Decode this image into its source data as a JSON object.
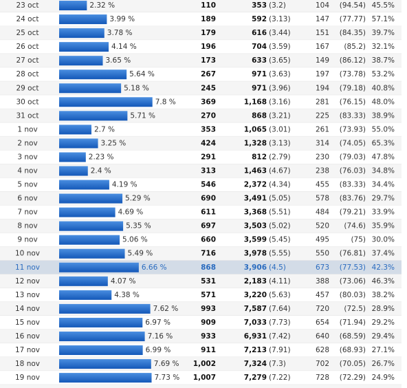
{
  "rows": [
    {
      "date": "23 oct",
      "share": {
        "value": 2.32,
        "label": "2.32 %"
      },
      "visits": "110",
      "views": "353",
      "views_avg": "(3.2)",
      "returning": "104",
      "returning_avg": "(94.54)",
      "rate": "45.5%"
    },
    {
      "date": "24 oct",
      "share": {
        "value": 3.99,
        "label": "3.99 %"
      },
      "visits": "189",
      "views": "592",
      "views_avg": "(3.13)",
      "returning": "147",
      "returning_avg": "(77.77)",
      "rate": "57.1%"
    },
    {
      "date": "25 oct",
      "share": {
        "value": 3.78,
        "label": "3.78 %"
      },
      "visits": "179",
      "views": "616",
      "views_avg": "(3.44)",
      "returning": "151",
      "returning_avg": "(84.35)",
      "rate": "39.7%"
    },
    {
      "date": "26 oct",
      "share": {
        "value": 4.14,
        "label": "4.14 %"
      },
      "visits": "196",
      "views": "704",
      "views_avg": "(3.59)",
      "returning": "167",
      "returning_avg": "(85.2)",
      "rate": "32.1%"
    },
    {
      "date": "27 oct",
      "share": {
        "value": 3.65,
        "label": "3.65 %"
      },
      "visits": "173",
      "views": "633",
      "views_avg": "(3.65)",
      "returning": "149",
      "returning_avg": "(86.12)",
      "rate": "38.7%"
    },
    {
      "date": "28 oct",
      "share": {
        "value": 5.64,
        "label": "5.64 %"
      },
      "visits": "267",
      "views": "971",
      "views_avg": "(3.63)",
      "returning": "197",
      "returning_avg": "(73.78)",
      "rate": "53.2%"
    },
    {
      "date": "29 oct",
      "share": {
        "value": 5.18,
        "label": "5.18 %"
      },
      "visits": "245",
      "views": "971",
      "views_avg": "(3.96)",
      "returning": "194",
      "returning_avg": "(79.18)",
      "rate": "40.8%"
    },
    {
      "date": "30 oct",
      "share": {
        "value": 7.8,
        "label": "7.8 %"
      },
      "visits": "369",
      "views": "1,168",
      "views_avg": "(3.16)",
      "returning": "281",
      "returning_avg": "(76.15)",
      "rate": "48.0%"
    },
    {
      "date": "31 oct",
      "share": {
        "value": 5.71,
        "label": "5.71 %"
      },
      "visits": "270",
      "views": "868",
      "views_avg": "(3.21)",
      "returning": "225",
      "returning_avg": "(83.33)",
      "rate": "38.9%"
    },
    {
      "date": "1 nov",
      "share": {
        "value": 2.7,
        "label": "2.7 %"
      },
      "visits": "353",
      "views": "1,065",
      "views_avg": "(3.01)",
      "returning": "261",
      "returning_avg": "(73.93)",
      "rate": "55.0%"
    },
    {
      "date": "2 nov",
      "share": {
        "value": 3.25,
        "label": "3.25 %"
      },
      "visits": "424",
      "views": "1,328",
      "views_avg": "(3.13)",
      "returning": "314",
      "returning_avg": "(74.05)",
      "rate": "65.3%"
    },
    {
      "date": "3 nov",
      "share": {
        "value": 2.23,
        "label": "2.23 %"
      },
      "visits": "291",
      "views": "812",
      "views_avg": "(2.79)",
      "returning": "230",
      "returning_avg": "(79.03)",
      "rate": "47.8%"
    },
    {
      "date": "4 nov",
      "share": {
        "value": 2.4,
        "label": "2.4 %"
      },
      "visits": "313",
      "views": "1,463",
      "views_avg": "(4.67)",
      "returning": "238",
      "returning_avg": "(76.03)",
      "rate": "34.8%"
    },
    {
      "date": "5 nov",
      "share": {
        "value": 4.19,
        "label": "4.19 %"
      },
      "visits": "546",
      "views": "2,372",
      "views_avg": "(4.34)",
      "returning": "455",
      "returning_avg": "(83.33)",
      "rate": "34.4%"
    },
    {
      "date": "6 nov",
      "share": {
        "value": 5.29,
        "label": "5.29 %"
      },
      "visits": "690",
      "views": "3,491",
      "views_avg": "(5.05)",
      "returning": "578",
      "returning_avg": "(83.76)",
      "rate": "29.7%"
    },
    {
      "date": "7 nov",
      "share": {
        "value": 4.69,
        "label": "4.69 %"
      },
      "visits": "611",
      "views": "3,368",
      "views_avg": "(5.51)",
      "returning": "484",
      "returning_avg": "(79.21)",
      "rate": "33.9%"
    },
    {
      "date": "8 nov",
      "share": {
        "value": 5.35,
        "label": "5.35 %"
      },
      "visits": "697",
      "views": "3,503",
      "views_avg": "(5.02)",
      "returning": "520",
      "returning_avg": "(74.6)",
      "rate": "35.9%"
    },
    {
      "date": "9 nov",
      "share": {
        "value": 5.06,
        "label": "5.06 %"
      },
      "visits": "660",
      "views": "3,599",
      "views_avg": "(5.45)",
      "returning": "495",
      "returning_avg": "(75)",
      "rate": "30.0%"
    },
    {
      "date": "10 nov",
      "share": {
        "value": 5.49,
        "label": "5.49 %"
      },
      "visits": "716",
      "views": "3,978",
      "views_avg": "(5.55)",
      "returning": "550",
      "returning_avg": "(76.81)",
      "rate": "37.4%"
    },
    {
      "date": "11 nov",
      "share": {
        "value": 6.66,
        "label": "6.66 %"
      },
      "visits": "868",
      "views": "3,906",
      "views_avg": "(4.5)",
      "returning": "673",
      "returning_avg": "(77.53)",
      "rate": "42.3%"
    },
    {
      "date": "12 nov",
      "share": {
        "value": 4.07,
        "label": "4.07 %"
      },
      "visits": "531",
      "views": "2,183",
      "views_avg": "(4.11)",
      "returning": "388",
      "returning_avg": "(73.06)",
      "rate": "46.3%"
    },
    {
      "date": "13 nov",
      "share": {
        "value": 4.38,
        "label": "4.38 %"
      },
      "visits": "571",
      "views": "3,220",
      "views_avg": "(5.63)",
      "returning": "457",
      "returning_avg": "(80.03)",
      "rate": "38.2%"
    },
    {
      "date": "14 nov",
      "share": {
        "value": 7.62,
        "label": "7.62 %"
      },
      "visits": "993",
      "views": "7,587",
      "views_avg": "(7.64)",
      "returning": "720",
      "returning_avg": "(72.5)",
      "rate": "28.9%"
    },
    {
      "date": "15 nov",
      "share": {
        "value": 6.97,
        "label": "6.97 %"
      },
      "visits": "909",
      "views": "7,033",
      "views_avg": "(7.73)",
      "returning": "654",
      "returning_avg": "(71.94)",
      "rate": "29.2%"
    },
    {
      "date": "16 nov",
      "share": {
        "value": 7.16,
        "label": "7.16 %"
      },
      "visits": "933",
      "views": "6,931",
      "views_avg": "(7.42)",
      "returning": "640",
      "returning_avg": "(68.59)",
      "rate": "29.4%"
    },
    {
      "date": "17 nov",
      "share": {
        "value": 6.99,
        "label": "6.99 %"
      },
      "visits": "911",
      "views": "7,213",
      "views_avg": "(7.91)",
      "returning": "628",
      "returning_avg": "(68.93)",
      "rate": "27.1%"
    },
    {
      "date": "18 nov",
      "share": {
        "value": 7.69,
        "label": "7.69 %"
      },
      "visits": "1,002",
      "views": "7,324",
      "views_avg": "(7.3)",
      "returning": "702",
      "returning_avg": "(70.05)",
      "rate": "26.7%"
    },
    {
      "date": "19 nov",
      "share": {
        "value": 7.73,
        "label": "7.73 %"
      },
      "visits": "1,007",
      "views": "7,279",
      "views_avg": "(7.22)",
      "returning": "728",
      "returning_avg": "(72.29)",
      "rate": "24.9%"
    }
  ],
  "highlighted_row": 19
}
